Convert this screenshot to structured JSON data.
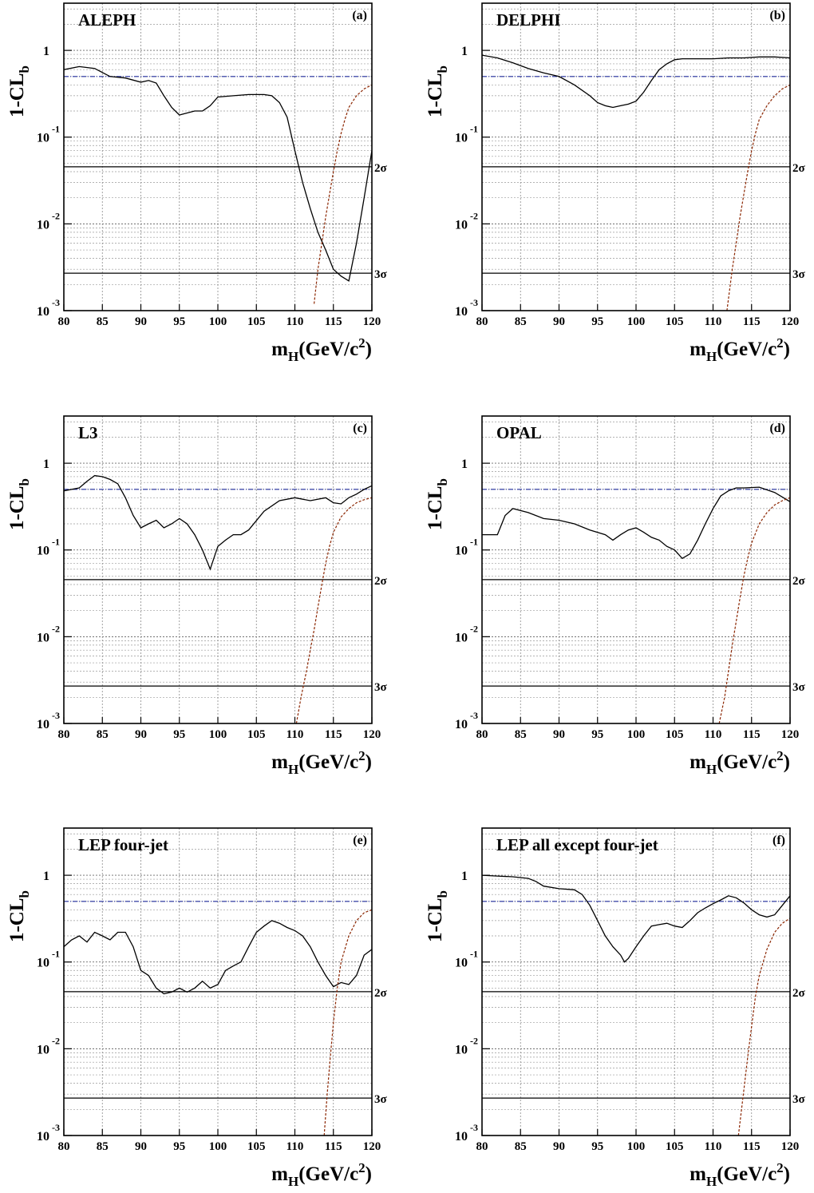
{
  "figure": {
    "y_axis_label": "1-CL",
    "y_axis_label_sub": "b",
    "x_axis_label_main": "m",
    "x_axis_label_sub": "H",
    "x_axis_label_units": "(GeV/c",
    "x_axis_label_sup": "2",
    "x_axis_label_close": ")",
    "sigma_labels": [
      "2σ",
      "3σ"
    ]
  },
  "chart_data": [
    {
      "type": "line",
      "title": "ALEPH",
      "panel_label": "(a)",
      "x_ticks": [
        80,
        85,
        90,
        95,
        100,
        105,
        110,
        115,
        120
      ],
      "y_ticks": [
        "10^-3",
        "10^-2",
        "10^-1",
        "1"
      ],
      "xlim": [
        80,
        120
      ],
      "ylim": [
        0.001,
        3.5
      ],
      "y_scale": "log",
      "reference_lines": {
        "expected_median": 0.5,
        "two_sigma": 0.0455,
        "three_sigma": 0.0027
      },
      "series": [
        {
          "style": "observed",
          "color": "#000000",
          "x": [
            80,
            82,
            84,
            86,
            88,
            90,
            91,
            92,
            93,
            94,
            95,
            96,
            97,
            98,
            99,
            100,
            102,
            104,
            106,
            107,
            108,
            109,
            110,
            111,
            112,
            113,
            114,
            115,
            116,
            117,
            118,
            119,
            120
          ],
          "y": [
            0.6,
            0.65,
            0.62,
            0.5,
            0.48,
            0.43,
            0.45,
            0.42,
            0.3,
            0.22,
            0.18,
            0.19,
            0.2,
            0.2,
            0.23,
            0.29,
            0.3,
            0.31,
            0.31,
            0.3,
            0.25,
            0.17,
            0.07,
            0.03,
            0.015,
            0.008,
            0.005,
            0.003,
            0.0025,
            0.0022,
            0.006,
            0.02,
            0.07
          ]
        },
        {
          "style": "expected signal+background",
          "color": "#8b2500",
          "x": [
            112.5,
            113,
            113.5,
            114,
            114.5,
            115,
            115.5,
            116,
            116.5,
            117,
            118,
            119,
            120
          ],
          "y": [
            0.0012,
            0.003,
            0.006,
            0.012,
            0.022,
            0.04,
            0.07,
            0.11,
            0.16,
            0.22,
            0.3,
            0.36,
            0.4
          ]
        }
      ]
    },
    {
      "type": "line",
      "title": "DELPHI",
      "panel_label": "(b)",
      "x_ticks": [
        80,
        85,
        90,
        95,
        100,
        105,
        110,
        115,
        120
      ],
      "y_ticks": [
        "10^-3",
        "10^-2",
        "10^-1",
        "1"
      ],
      "xlim": [
        80,
        120
      ],
      "ylim": [
        0.001,
        3.5
      ],
      "y_scale": "log",
      "reference_lines": {
        "expected_median": 0.5,
        "two_sigma": 0.0455,
        "three_sigma": 0.0027
      },
      "series": [
        {
          "style": "observed",
          "color": "#000000",
          "x": [
            80,
            82,
            84,
            86,
            88,
            90,
            92,
            94,
            95,
            96,
            97,
            98,
            99,
            100,
            101,
            102,
            103,
            104,
            105,
            106,
            108,
            110,
            112,
            114,
            116,
            118,
            120
          ],
          "y": [
            0.88,
            0.82,
            0.72,
            0.62,
            0.55,
            0.5,
            0.4,
            0.3,
            0.25,
            0.23,
            0.22,
            0.23,
            0.24,
            0.26,
            0.33,
            0.45,
            0.6,
            0.7,
            0.78,
            0.8,
            0.8,
            0.8,
            0.82,
            0.82,
            0.84,
            0.84,
            0.82
          ]
        },
        {
          "style": "expected signal+background",
          "color": "#8b2500",
          "x": [
            111.8,
            112.5,
            113,
            113.5,
            114,
            114.5,
            115,
            115.5,
            116,
            117,
            118,
            119,
            120
          ],
          "y": [
            0.001,
            0.003,
            0.006,
            0.012,
            0.022,
            0.04,
            0.07,
            0.11,
            0.16,
            0.23,
            0.3,
            0.36,
            0.4
          ]
        }
      ]
    },
    {
      "type": "line",
      "title": "L3",
      "panel_label": "(c)",
      "x_ticks": [
        80,
        85,
        90,
        95,
        100,
        105,
        110,
        115,
        120
      ],
      "y_ticks": [
        "10^-3",
        "10^-2",
        "10^-1",
        "1"
      ],
      "xlim": [
        80,
        120
      ],
      "ylim": [
        0.001,
        3.5
      ],
      "y_scale": "log",
      "reference_lines": {
        "expected_median": 0.5,
        "two_sigma": 0.0455,
        "three_sigma": 0.0027
      },
      "series": [
        {
          "style": "observed",
          "color": "#000000",
          "x": [
            80,
            82,
            83,
            84,
            85,
            86,
            87,
            88,
            89,
            90,
            91,
            92,
            93,
            94,
            95,
            96,
            97,
            98,
            99,
            100,
            101,
            102,
            103,
            104,
            106,
            108,
            110,
            112,
            114,
            115,
            116,
            117,
            118,
            119,
            120
          ],
          "y": [
            0.48,
            0.52,
            0.62,
            0.72,
            0.7,
            0.65,
            0.58,
            0.4,
            0.25,
            0.18,
            0.2,
            0.22,
            0.18,
            0.2,
            0.23,
            0.2,
            0.15,
            0.1,
            0.06,
            0.11,
            0.13,
            0.15,
            0.15,
            0.17,
            0.28,
            0.37,
            0.4,
            0.37,
            0.4,
            0.35,
            0.34,
            0.4,
            0.44,
            0.5,
            0.55
          ]
        },
        {
          "style": "expected signal+background",
          "color": "#8b2500",
          "x": [
            110.2,
            110.8,
            111.5,
            112,
            112.5,
            113,
            113.5,
            114,
            114.5,
            115,
            116,
            117,
            118,
            119,
            120
          ],
          "y": [
            0.001,
            0.002,
            0.004,
            0.007,
            0.012,
            0.022,
            0.04,
            0.07,
            0.11,
            0.16,
            0.24,
            0.3,
            0.35,
            0.38,
            0.4
          ]
        }
      ]
    },
    {
      "type": "line",
      "title": "OPAL",
      "panel_label": "(d)",
      "x_ticks": [
        80,
        85,
        90,
        95,
        100,
        105,
        110,
        115,
        120
      ],
      "y_ticks": [
        "10^-3",
        "10^-2",
        "10^-1",
        "1"
      ],
      "xlim": [
        80,
        120
      ],
      "ylim": [
        0.001,
        3.5
      ],
      "y_scale": "log",
      "reference_lines": {
        "expected_median": 0.5,
        "two_sigma": 0.0455,
        "three_sigma": 0.0027
      },
      "series": [
        {
          "style": "observed",
          "color": "#000000",
          "x": [
            80,
            82,
            83,
            84,
            86,
            88,
            90,
            92,
            94,
            96,
            97,
            98,
            99,
            100,
            101,
            102,
            103,
            104,
            105,
            106,
            107,
            108,
            109,
            110,
            111,
            112,
            113,
            114,
            116,
            118,
            120
          ],
          "y": [
            0.15,
            0.15,
            0.25,
            0.3,
            0.27,
            0.23,
            0.22,
            0.2,
            0.17,
            0.15,
            0.13,
            0.15,
            0.17,
            0.18,
            0.16,
            0.14,
            0.13,
            0.11,
            0.1,
            0.08,
            0.09,
            0.13,
            0.2,
            0.3,
            0.42,
            0.48,
            0.52,
            0.52,
            0.53,
            0.46,
            0.36
          ]
        },
        {
          "style": "expected signal+background",
          "color": "#8b2500",
          "x": [
            110.8,
            111.5,
            112,
            112.5,
            113,
            113.5,
            114,
            114.5,
            115,
            116,
            117,
            118,
            119,
            120
          ],
          "y": [
            0.001,
            0.002,
            0.004,
            0.008,
            0.015,
            0.028,
            0.05,
            0.08,
            0.12,
            0.2,
            0.27,
            0.33,
            0.37,
            0.4
          ]
        }
      ]
    },
    {
      "type": "line",
      "title": "LEP four-jet",
      "panel_label": "(e)",
      "x_ticks": [
        80,
        85,
        90,
        95,
        100,
        105,
        110,
        115,
        120
      ],
      "y_ticks": [
        "10^-3",
        "10^-2",
        "10^-1",
        "1"
      ],
      "xlim": [
        80,
        120
      ],
      "ylim": [
        0.001,
        3.5
      ],
      "y_scale": "log",
      "reference_lines": {
        "expected_median": 0.5,
        "two_sigma": 0.0455,
        "three_sigma": 0.0027
      },
      "series": [
        {
          "style": "observed",
          "color": "#000000",
          "x": [
            80,
            81,
            82,
            83,
            84,
            85,
            86,
            87,
            88,
            89,
            90,
            91,
            92,
            93,
            94,
            95,
            96,
            97,
            98,
            99,
            100,
            101,
            102,
            103,
            104,
            105,
            106,
            107,
            108,
            109,
            110,
            111,
            112,
            113,
            114,
            115,
            116,
            117,
            118,
            119,
            120
          ],
          "y": [
            0.15,
            0.18,
            0.2,
            0.17,
            0.22,
            0.2,
            0.18,
            0.22,
            0.22,
            0.15,
            0.08,
            0.07,
            0.05,
            0.043,
            0.045,
            0.05,
            0.045,
            0.05,
            0.06,
            0.05,
            0.055,
            0.08,
            0.09,
            0.1,
            0.15,
            0.22,
            0.26,
            0.3,
            0.28,
            0.25,
            0.23,
            0.2,
            0.15,
            0.1,
            0.07,
            0.052,
            0.058,
            0.055,
            0.07,
            0.12,
            0.14
          ]
        },
        {
          "style": "expected signal+background",
          "color": "#8b2500",
          "x": [
            113.8,
            114.2,
            114.6,
            115,
            115.5,
            116,
            117,
            118,
            119,
            120
          ],
          "y": [
            0.001,
            0.003,
            0.008,
            0.02,
            0.05,
            0.1,
            0.2,
            0.3,
            0.37,
            0.4
          ]
        }
      ]
    },
    {
      "type": "line",
      "title": "LEP all except four-jet",
      "panel_label": "(f)",
      "x_ticks": [
        80,
        85,
        90,
        95,
        100,
        105,
        110,
        115,
        120
      ],
      "y_ticks": [
        "10^-3",
        "10^-2",
        "10^-1",
        "1"
      ],
      "xlim": [
        80,
        120
      ],
      "ylim": [
        0.001,
        3.5
      ],
      "y_scale": "log",
      "reference_lines": {
        "expected_median": 0.5,
        "two_sigma": 0.0455,
        "three_sigma": 0.0027
      },
      "series": [
        {
          "style": "observed",
          "color": "#000000",
          "x": [
            80,
            82,
            84,
            86,
            87,
            88,
            90,
            92,
            93,
            94,
            95,
            96,
            97,
            98,
            98.5,
            99,
            100,
            101,
            102,
            103,
            104,
            105,
            106,
            107,
            108,
            109,
            110,
            111,
            112,
            113,
            114,
            115,
            116,
            117,
            118,
            119,
            120
          ],
          "y": [
            1.0,
            0.98,
            0.96,
            0.92,
            0.85,
            0.75,
            0.7,
            0.68,
            0.6,
            0.45,
            0.3,
            0.2,
            0.15,
            0.12,
            0.1,
            0.11,
            0.15,
            0.2,
            0.26,
            0.27,
            0.28,
            0.26,
            0.25,
            0.3,
            0.37,
            0.42,
            0.47,
            0.52,
            0.58,
            0.55,
            0.48,
            0.4,
            0.35,
            0.33,
            0.35,
            0.45,
            0.58
          ]
        },
        {
          "style": "expected signal+background",
          "color": "#8b2500",
          "x": [
            113.3,
            113.7,
            114.1,
            114.5,
            115,
            115.5,
            116,
            117,
            118,
            119,
            120
          ],
          "y": [
            0.001,
            0.002,
            0.004,
            0.008,
            0.018,
            0.04,
            0.07,
            0.14,
            0.22,
            0.28,
            0.32
          ]
        }
      ]
    }
  ]
}
